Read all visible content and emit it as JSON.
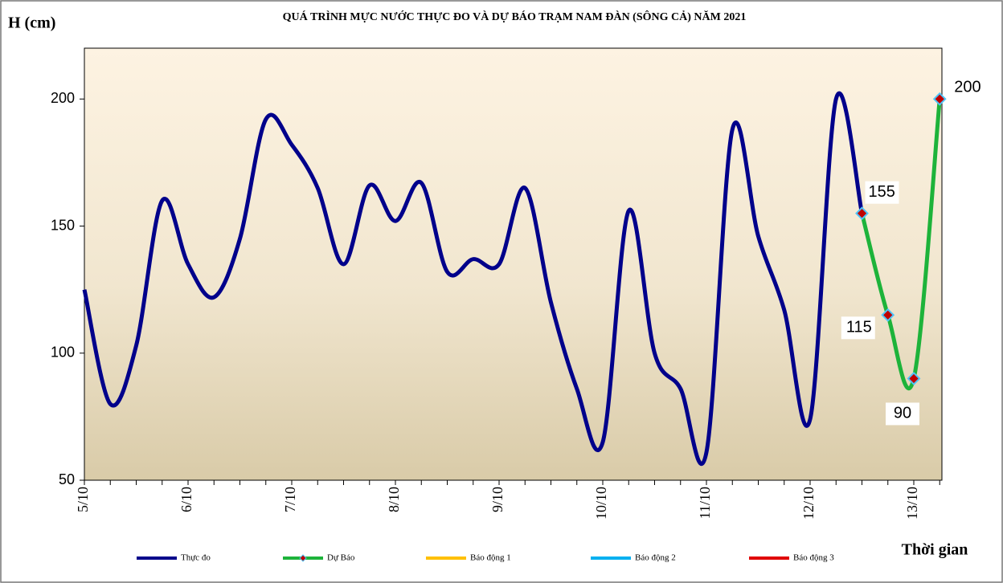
{
  "chart_data": {
    "type": "line",
    "title": "QUÁ TRÌNH MỰC NƯỚC THỰC ĐO VÀ DỰ BÁO TRẠM  NAM  ĐÀN (SÔNG CẢ) NĂM 2021",
    "y_label": "H (cm)",
    "x_label": "Thời gian",
    "categories": [
      "5/10",
      null,
      null,
      null,
      "6/10",
      null,
      null,
      null,
      "7/10",
      null,
      null,
      null,
      "8/10",
      null,
      null,
      null,
      "9/10",
      null,
      null,
      null,
      "10/10",
      null,
      null,
      null,
      "11/10",
      null,
      null,
      null,
      "12/10",
      null,
      null,
      null,
      "13/10",
      null
    ],
    "series": [
      {
        "name": "Thực đo",
        "color": "#00008b",
        "values": [
          125,
          80,
          103,
          160,
          135,
          122,
          145,
          192,
          182,
          165,
          135,
          166,
          152,
          167,
          132,
          137,
          135,
          165,
          120,
          86,
          65,
          156,
          100,
          86,
          61,
          188,
          146,
          117,
          74,
          200,
          155,
          null,
          null,
          null
        ]
      },
      {
        "name": "Dự Báo",
        "color": "#1db33a",
        "values": [
          null,
          null,
          null,
          null,
          null,
          null,
          null,
          null,
          null,
          null,
          null,
          null,
          null,
          null,
          null,
          null,
          null,
          null,
          null,
          null,
          null,
          null,
          null,
          null,
          null,
          null,
          null,
          null,
          null,
          null,
          155,
          115,
          90,
          200
        ]
      },
      {
        "name": "Báo động 1",
        "color": "#ffc000"
      },
      {
        "name": "Báo động 2",
        "color": "#00b0f0"
      },
      {
        "name": "Báo động 3",
        "color": "#e00000"
      }
    ],
    "ylim": [
      50,
      220
    ],
    "yticks": [
      50,
      100,
      150,
      200
    ],
    "smooth": true
  }
}
